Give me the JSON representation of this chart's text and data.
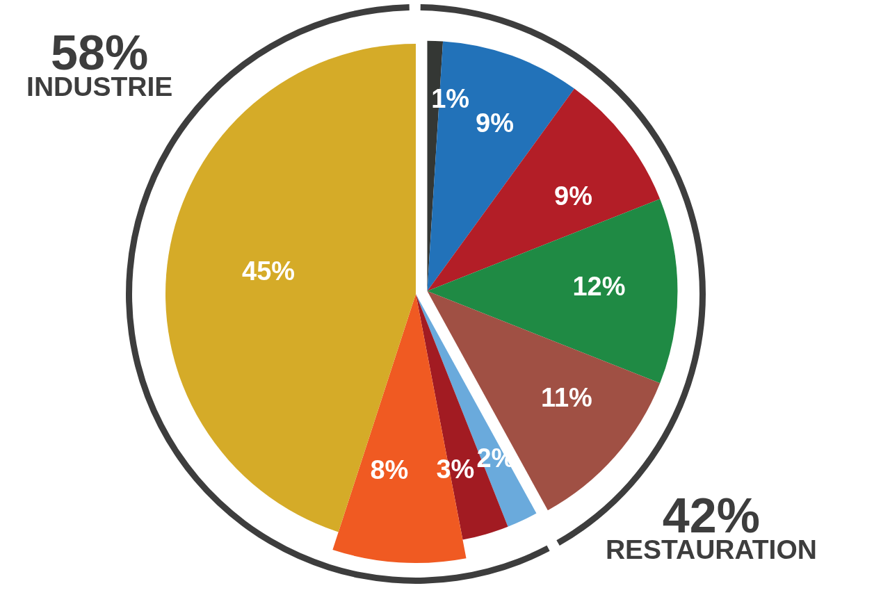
{
  "chart_data": [
    {
      "type": "donut",
      "categories": [
        "RESTAURATION",
        "INDUSTRIE"
      ],
      "values": [
        42,
        58
      ],
      "colors": [
        "#3d3d3d",
        "#3d3d3d"
      ],
      "value_labels": [
        "42%",
        "58%"
      ]
    },
    {
      "type": "pie",
      "categories": [
        null,
        null,
        null,
        null,
        null,
        null,
        null,
        null,
        null
      ],
      "values": [
        1,
        9,
        9,
        12,
        11,
        2,
        3,
        8,
        45
      ],
      "colors": [
        "#343734",
        "#2272b9",
        "#b31e27",
        "#1f8a44",
        "#a05044",
        "#6aaadc",
        "#a21b22",
        "#f05a22",
        "#d5ab28"
      ],
      "value_labels": [
        "1%",
        "9%",
        "9%",
        "12%",
        "11%",
        "2%",
        "3%",
        "8%",
        "45%"
      ]
    }
  ]
}
